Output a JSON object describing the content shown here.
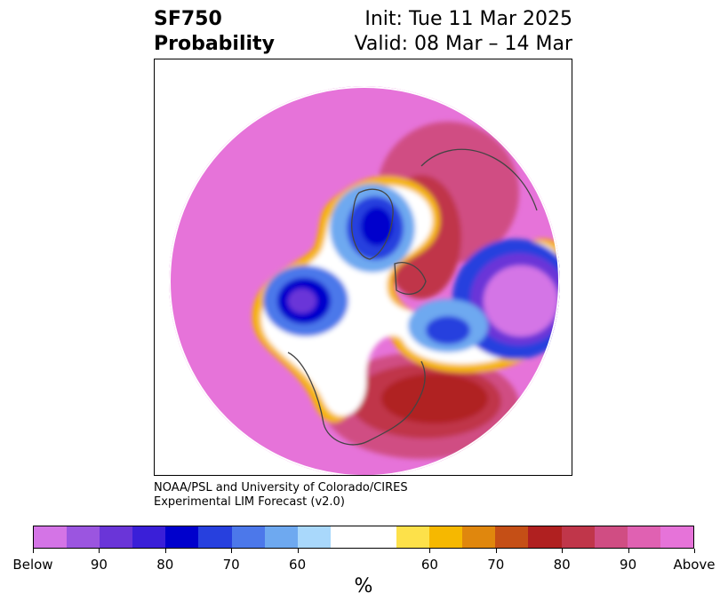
{
  "title": {
    "left_line1": "SF750",
    "left_line2": "Probability",
    "right_line1": "Init: Tue 11 Mar 2025",
    "right_line2": "Valid: 08 Mar – 14 Mar"
  },
  "credit": {
    "line1": "NOAA/PSL and University of Colorado/CIRES",
    "line2": "Experimental LIM Forecast (v2.0)"
  },
  "colorbar": {
    "unit_label": "%",
    "colors": [
      "#d474e6",
      "#9b55e0",
      "#6a35d8",
      "#3a1fd8",
      "#0000cc",
      "#2740de",
      "#4c78ea",
      "#6ea9f0",
      "#a9d8fb",
      "#ffffff",
      "#ffffff",
      "#fde14a",
      "#f6b800",
      "#e0870d",
      "#c54f16",
      "#b02020",
      "#c0364a",
      "#d04d83",
      "#e061b2",
      "#e673d9"
    ],
    "tick_labels": [
      "Below",
      "90",
      "80",
      "70",
      "60",
      "60",
      "70",
      "80",
      "90",
      "Above"
    ]
  },
  "map": {
    "projection": "polar stereographic (Northern Hemisphere)",
    "coastline_color": "#444444",
    "anomaly_centers": [
      {
        "name": "Greenland/Baffin low",
        "category": "Below"
      },
      {
        "name": "Alaska/Gulf of Alaska low",
        "category": "Below"
      },
      {
        "name": "Siberia low",
        "category": "Below"
      },
      {
        "name": "North Atlantic high",
        "category": "Above"
      },
      {
        "name": "Scandinavia high",
        "category": "Above"
      }
    ]
  }
}
